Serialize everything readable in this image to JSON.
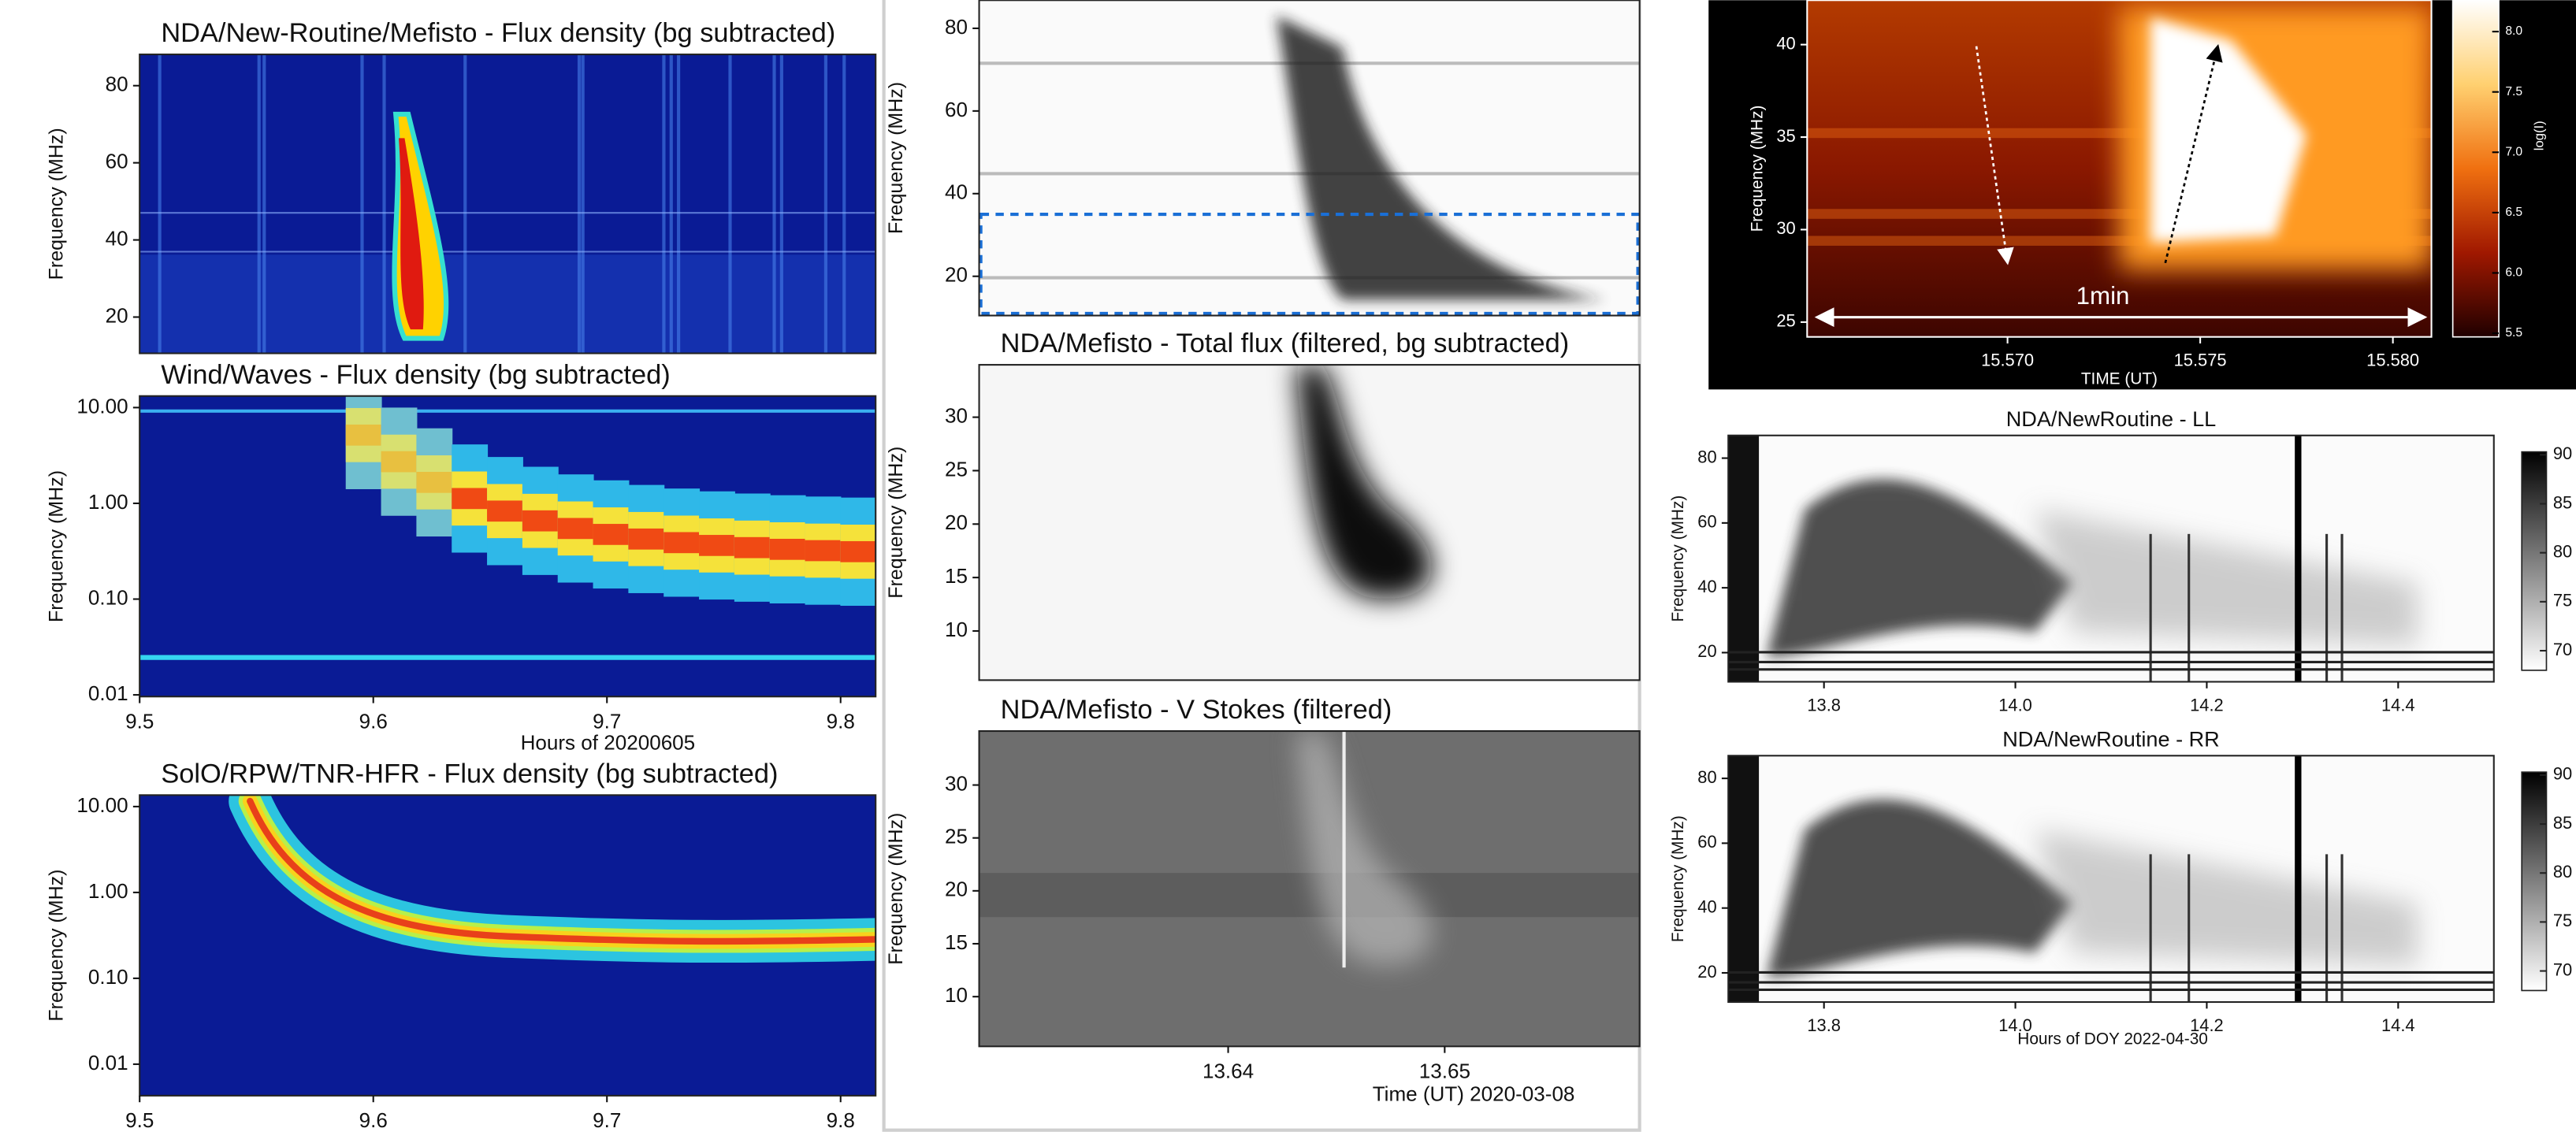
{
  "chart_data": [
    {
      "type": "spectrogram",
      "title": "NDA/New-Routine/Mefisto - Flux density (bg subtracted)",
      "ylabel": "Frequency (MHz)",
      "colormap": "jet",
      "xlim": [
        9.5,
        9.815
      ],
      "ylim": [
        10.6,
        88.1
      ],
      "yticks": [
        20,
        40,
        60,
        80
      ]
    },
    {
      "type": "spectrogram",
      "title": "Wind/Waves - Flux density (bg subtracted)",
      "ylabel": "Frequency (MHz)",
      "xlabel": "Hours of 20200605",
      "colormap": "jet",
      "log_y": true,
      "xlim": [
        9.5,
        9.815
      ],
      "ylim": [
        0.0096,
        13.2
      ],
      "xticks": [
        9.5,
        9.6,
        9.7,
        9.8
      ],
      "yticks": [
        0.01,
        {
          "value": 0.1,
          "label": "0.10"
        },
        {
          "value": 1,
          "label": "1.00"
        },
        {
          "value": 10,
          "label": "10.00"
        }
      ]
    },
    {
      "type": "spectrogram",
      "title": "SolO/RPW/TNR-HFR - Flux density (bg subtracted)",
      "ylabel": "Frequency (MHz)",
      "colormap": "jet",
      "log_y": true,
      "xlim": [
        9.5,
        9.815
      ],
      "ylim": [
        0.0043,
        13.6
      ],
      "xticks": [
        9.5,
        9.6,
        9.7,
        9.8
      ],
      "yticks": [
        0.01,
        {
          "value": 0.1,
          "label": "0.10"
        },
        {
          "value": 1,
          "label": "1.00"
        },
        {
          "value": 10,
          "label": "10.00"
        }
      ]
    },
    {
      "type": "spectrogram",
      "ylabel": "Frequency (MHz)",
      "colormap": "gray",
      "xlim": [
        13.6285,
        13.659
      ],
      "ylim": [
        10.5,
        86.8
      ],
      "yticks": [
        20,
        40,
        60,
        80
      ],
      "highlight_range": [
        11,
        35
      ]
    },
    {
      "type": "spectrogram",
      "title": "NDA/Mefisto - Total flux (filtered, bg subtracted)",
      "ylabel": "Frequency (MHz)",
      "colormap": "gray",
      "xlim": [
        13.6285,
        13.659
      ],
      "ylim": [
        5.4,
        34.9
      ],
      "yticks": [
        10,
        15,
        20,
        25,
        30
      ]
    },
    {
      "type": "spectrogram",
      "title": "NDA/Mefisto - V Stokes (filtered)",
      "ylabel": "Frequency (MHz)",
      "xlabel": "Time (UT) 2020-03-08",
      "colormap": "stokes",
      "xlim": [
        13.6285,
        13.659
      ],
      "ylim": [
        5.3,
        35.1
      ],
      "yticks": [
        10,
        15,
        20,
        25,
        30
      ],
      "xticks": [
        13.64,
        13.65
      ]
    },
    {
      "type": "spectrogram",
      "ylabel": "Frequency (MHz)",
      "xlabel": "TIME (UT)",
      "colormap": "hot",
      "annotation": "1min",
      "xlim": [
        15.5648,
        15.581
      ],
      "ylim": [
        24.2,
        42.4
      ],
      "yticks": [
        25,
        30,
        35,
        40
      ],
      "xticks": [
        {
          "value": 15.57,
          "label": "15.570"
        },
        15.575,
        {
          "value": 15.58,
          "label": "15.580"
        }
      ],
      "colorbar": {
        "label": "log(I)",
        "lim": [
          5.47,
          8.26
        ],
        "ticks": [
          5.5,
          {
            "value": 6,
            "label": "6.0"
          },
          6.5,
          {
            "value": 7,
            "label": "7.0"
          },
          7.5,
          {
            "value": 8,
            "label": "8.0"
          }
        ]
      }
    },
    {
      "type": "spectrogram",
      "title": "NDA/NewRoutine - LL",
      "ylabel": "Frequency (MHz)",
      "colormap": "gray_r",
      "xlim": [
        13.7,
        14.5
      ],
      "ylim": [
        11,
        87
      ],
      "yticks": [
        20,
        40,
        60,
        80
      ],
      "xticks": [
        13.8,
        {
          "value": 14,
          "label": "14.0"
        },
        14.2,
        14.4
      ],
      "colorbar": {
        "lim": [
          68,
          90.3
        ],
        "ticks": [
          70,
          75,
          80,
          85,
          90
        ]
      }
    },
    {
      "type": "spectrogram",
      "title": "NDA/NewRoutine - RR",
      "ylabel": "Frequency (MHz)",
      "xlabel": "Hours of DOY 2022-04-30",
      "colormap": "gray_r",
      "xlim": [
        13.7,
        14.5
      ],
      "ylim": [
        11,
        87
      ],
      "yticks": [
        20,
        40,
        60,
        80
      ],
      "xticks": [
        13.8,
        {
          "value": 14,
          "label": "14.0"
        },
        14.2,
        14.4
      ],
      "colorbar": {
        "lim": [
          68,
          90.3
        ],
        "ticks": [
          70,
          75,
          80,
          85,
          90
        ]
      }
    }
  ]
}
